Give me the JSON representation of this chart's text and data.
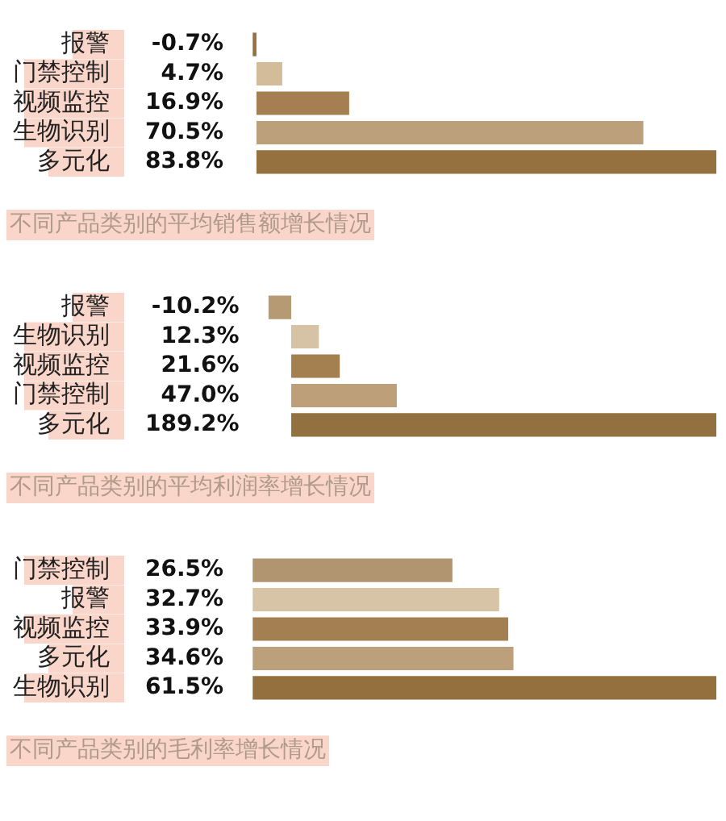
{
  "chart_data": [
    {
      "type": "bar",
      "orientation": "horizontal",
      "title": "不同产品类别的平均销售额增长情况",
      "categories": [
        "报警",
        "门禁控制",
        "视频监控",
        "生物识别",
        "多元化"
      ],
      "values": [
        -0.7,
        4.7,
        16.9,
        70.5,
        83.8
      ],
      "value_labels": [
        "-0.7%",
        "4.7%",
        "16.9%",
        "70.5%",
        "83.8%"
      ],
      "colors": [
        "#94713f",
        "#d2bc9a",
        "#a57f52",
        "#bca07c",
        "#94713f"
      ]
    },
    {
      "type": "bar",
      "orientation": "horizontal",
      "title": "不同产品类别的平均利润率增长情况",
      "categories": [
        "报警",
        "生物识别",
        "视频监控",
        "门禁控制",
        "多元化"
      ],
      "values": [
        -10.2,
        12.3,
        21.6,
        47.0,
        189.2
      ],
      "value_labels": [
        "-10.2%",
        "12.3%",
        "21.6%",
        "47.0%",
        "189.2%"
      ],
      "colors": [
        "#b59a74",
        "#d6c2a4",
        "#a47f50",
        "#bda07a",
        "#93703f"
      ]
    },
    {
      "type": "bar",
      "orientation": "horizontal",
      "title": "不同产品类别的毛利率增长情况",
      "categories": [
        "门禁控制",
        "报警",
        "视频监控",
        "多元化",
        "生物识别"
      ],
      "values": [
        26.5,
        32.7,
        33.9,
        34.6,
        61.5
      ],
      "value_labels": [
        "26.5%",
        "32.7%",
        "33.9%",
        "34.6%",
        "61.5%"
      ],
      "colors": [
        "#b09570",
        "#d7c4a6",
        "#a47f52",
        "#bca07c",
        "#94703f"
      ]
    }
  ]
}
